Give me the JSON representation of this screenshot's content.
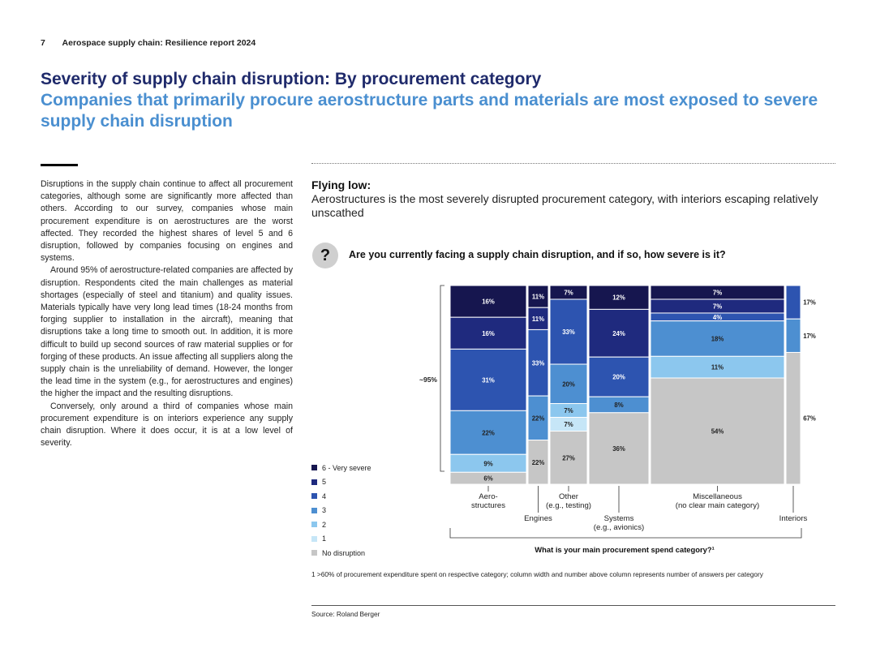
{
  "header": {
    "page_number": "7",
    "report": "Aerospace supply chain: Resilience report 2024"
  },
  "title": "Severity of supply chain disruption: By procurement category",
  "subtitle": "Companies that primarily procure aerostructure parts and materials are most exposed to severe supply chain disruption",
  "body": [
    "Disruptions in the supply chain continue to affect all procurement categories, although some are significantly more affected than others. According to our survey, companies whose main procurement expenditure is on aerostructures are the worst affected. They recorded the highest shares of level 5 and 6 disruption, followed by companies focusing on engines and systems.",
    "Around 95% of aerostructure-related companies are affected by disruption. Respondents cited the main challenges as material shortages (especially of steel and titanium) and quality issues. Materials typically have very long lead times (18-24 months from forging supplier to installation in the aircraft), meaning that disruptions take a long time to smooth out. In addition, it is more difficult to build up second sources of raw material supplies or for forging of these products. An issue affecting all suppliers along the supply chain is the unreliability of demand. However, the longer the lead time in the system (e.g., for aerostructures and engines) the higher the impact and the resulting disruptions.",
    "Conversely, only around a third of companies whose main procurement expenditure is on interiors experience any supply chain disruption. Where it does occur, it is at a low level of severity."
  ],
  "figure": {
    "heading": "Flying low:",
    "subheading": "Aerostructures is the most severely disrupted procurement category, with interiors escaping relatively unscathed",
    "question_icon": "?",
    "question": "Are you currently facing a supply chain disruption, and if so, how severe is it?",
    "legend": [
      {
        "label": "6 - Very severe",
        "color": "#16164f"
      },
      {
        "label": "5",
        "color": "#1f2a7e"
      },
      {
        "label": "4",
        "color": "#2d54b0"
      },
      {
        "label": "3",
        "color": "#4d8fd1"
      },
      {
        "label": "2",
        "color": "#8cc7ee"
      },
      {
        "label": "1",
        "color": "#c6e6f7"
      },
      {
        "label": "No disruption",
        "color": "#c6c6c6"
      }
    ],
    "footnote": "1 >60% of procurement expenditure spent on respective category; column width and number above column represents number of answers per category",
    "source": "Source: Roland Berger"
  },
  "chart_data": {
    "type": "bar",
    "variant": "marimekko-stacked-100",
    "x_axis_title": "What is your main procurement spend category?¹",
    "levels": [
      "6 - Very severe",
      "5",
      "4",
      "3",
      "2",
      "1",
      "No disruption"
    ],
    "bracket_label": "~95%",
    "columns": [
      {
        "name": "Aero- structures",
        "label_lines": [
          "Aero-",
          "structures"
        ],
        "label_row": "top",
        "values": {
          "6 - Very severe": 16,
          "5": 16,
          "4": 31,
          "3": 22,
          "2": 9,
          "1": 0,
          "No disruption": 6
        },
        "labels": {
          "6 - Very severe": "16%",
          "5": "16%",
          "4": "31%",
          "3": "22%",
          "2": "9%",
          "No disruption": "6%"
        }
      },
      {
        "name": "Engines",
        "label_lines": [
          "Engines"
        ],
        "label_row": "bottom",
        "values": {
          "6 - Very severe": 11,
          "5": 11,
          "4": 33,
          "3": 22,
          "2": 0,
          "1": 0,
          "No disruption": 22
        },
        "labels": {
          "6 - Very severe": "11%",
          "5": "11%",
          "4": "33%",
          "3": "22%",
          "No disruption": "22%"
        }
      },
      {
        "name": "Other (e.g., testing)",
        "label_lines": [
          "Other",
          "(e.g., testing)"
        ],
        "label_row": "top",
        "values": {
          "6 - Very severe": 7,
          "5": 0,
          "4": 33,
          "3": 20,
          "2": 7,
          "1": 7,
          "No disruption": 27
        },
        "labels": {
          "6 - Very severe": "7%",
          "4": "33%",
          "3": "20%",
          "2": "7%",
          "1": "7%",
          "No disruption": "27%"
        }
      },
      {
        "name": "Systems (e.g., avionics)",
        "label_lines": [
          "Systems",
          "(e.g., avionics)"
        ],
        "label_row": "bottom",
        "values": {
          "6 - Very severe": 12,
          "5": 24,
          "4": 20,
          "3": 8,
          "2": 0,
          "1": 0,
          "No disruption": 36
        },
        "labels": {
          "6 - Very severe": "12%",
          "5": "24%",
          "4": "20%",
          "3": "8%",
          "No disruption": "36%"
        }
      },
      {
        "name": "Miscellaneous (no clear main category)",
        "label_lines": [
          "Miscellaneous",
          "(no clear main category)"
        ],
        "label_row": "top",
        "values": {
          "6 - Very severe": 7,
          "5": 7,
          "4": 4,
          "3": 18,
          "2": 11,
          "1": 0,
          "No disruption": 54
        },
        "labels": {
          "6 - Very severe": "7%",
          "5": "7%",
          "4": "4%",
          "3": "18%",
          "2": "11%",
          "No disruption": "54%"
        }
      },
      {
        "name": "Interiors",
        "label_lines": [
          "Interiors"
        ],
        "label_row": "bottom",
        "values": {
          "6 - Very severe": 0,
          "5": 0,
          "4": 17,
          "3": 17,
          "2": 0,
          "1": 0,
          "No disruption": 67
        },
        "labels": {
          "4": "17%",
          "3": "17%",
          "No disruption": "67%"
        }
      }
    ]
  }
}
